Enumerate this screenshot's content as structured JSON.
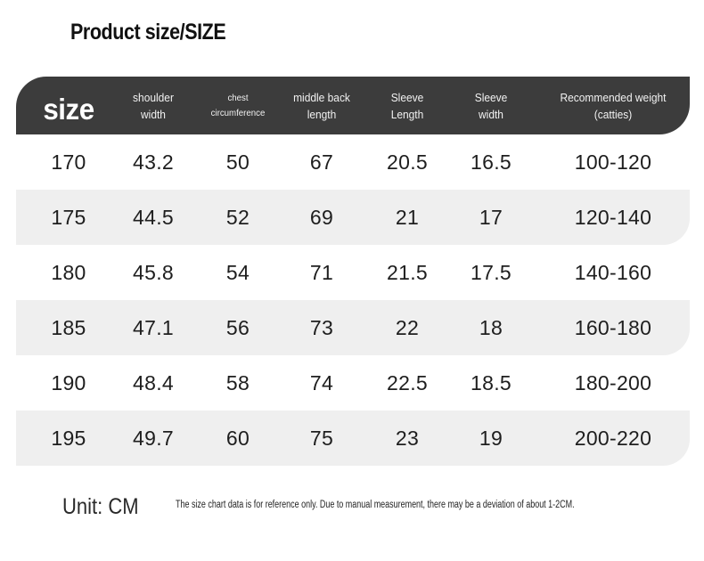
{
  "title": "Product size/SIZE",
  "headers": [
    {
      "line1": "size",
      "line2": ""
    },
    {
      "line1": "shoulder",
      "line2": "width"
    },
    {
      "line1": "chest",
      "line2": "circumference"
    },
    {
      "line1": "middle back",
      "line2": "length"
    },
    {
      "line1": "Sleeve",
      "line2": "Length"
    },
    {
      "line1": "Sleeve",
      "line2": "width"
    },
    {
      "line1": "Recommended weight",
      "line2": "(catties)"
    }
  ],
  "rows": [
    [
      "170",
      "43.2",
      "50",
      "67",
      "20.5",
      "16.5",
      "100-120"
    ],
    [
      "175",
      "44.5",
      "52",
      "69",
      "21",
      "17",
      "120-140"
    ],
    [
      "180",
      "45.8",
      "54",
      "71",
      "21.5",
      "17.5",
      "140-160"
    ],
    [
      "185",
      "47.1",
      "56",
      "73",
      "22",
      "18",
      "160-180"
    ],
    [
      "190",
      "48.4",
      "58",
      "74",
      "22.5",
      "18.5",
      "180-200"
    ],
    [
      "195",
      "49.7",
      "60",
      "75",
      "23",
      "19",
      "200-220"
    ]
  ],
  "unit": "Unit: CM",
  "note": "The size chart data is for reference only. Due to manual measurement, there may be a deviation of about 1-2CM.",
  "colors": {
    "header_bg": "#3c3c3c",
    "header_text": "#ffffff",
    "row_shade": "#efefef",
    "text": "#1e1e1e"
  }
}
